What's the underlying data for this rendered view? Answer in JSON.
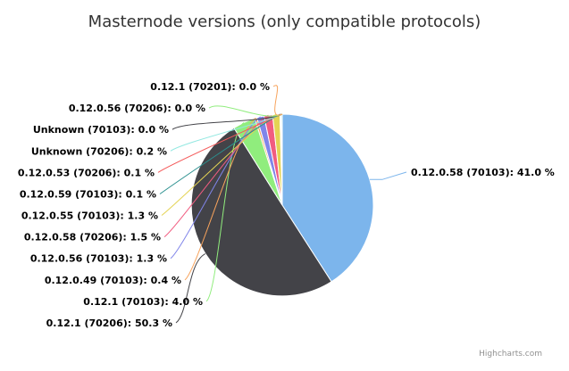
{
  "chart_data": {
    "type": "pie",
    "title": "Masternode versions (only compatible protocols)",
    "credits": "Highcharts.com",
    "slices": [
      {
        "label": "0.12.0.58 (70103): 41.0 %",
        "value": 41.0,
        "color": "#7cb5ec"
      },
      {
        "label": "0.12.1 (70206): 50.3 %",
        "value": 50.3,
        "color": "#434348"
      },
      {
        "label": "0.12.1 (70103): 4.0 %",
        "value": 4.0,
        "color": "#90ed7d"
      },
      {
        "label": "0.12.0.49 (70103): 0.4 %",
        "value": 0.4,
        "color": "#f7a35c"
      },
      {
        "label": "0.12.0.56 (70103): 1.3 %",
        "value": 1.3,
        "color": "#8085e9"
      },
      {
        "label": "0.12.0.58 (70206): 1.5 %",
        "value": 1.5,
        "color": "#f15c80"
      },
      {
        "label": "0.12.0.55 (70103): 1.3 %",
        "value": 1.3,
        "color": "#e4d354"
      },
      {
        "label": "0.12.0.59 (70103): 0.1 %",
        "value": 0.1,
        "color": "#2b908f"
      },
      {
        "label": "0.12.0.53 (70206): 0.1 %",
        "value": 0.1,
        "color": "#f45b5b"
      },
      {
        "label": "Unknown (70206): 0.2 %",
        "value": 0.2,
        "color": "#91e8e1"
      },
      {
        "label": "Unknown (70103): 0.0 %",
        "value": 0.0,
        "color": "#434348"
      },
      {
        "label": "0.12.0.56 (70206): 0.0 %",
        "value": 0.0,
        "color": "#90ed7d"
      },
      {
        "label": "0.12.1 (70201): 0.0 %",
        "value": 0.0,
        "color": "#f7a35c"
      }
    ]
  }
}
